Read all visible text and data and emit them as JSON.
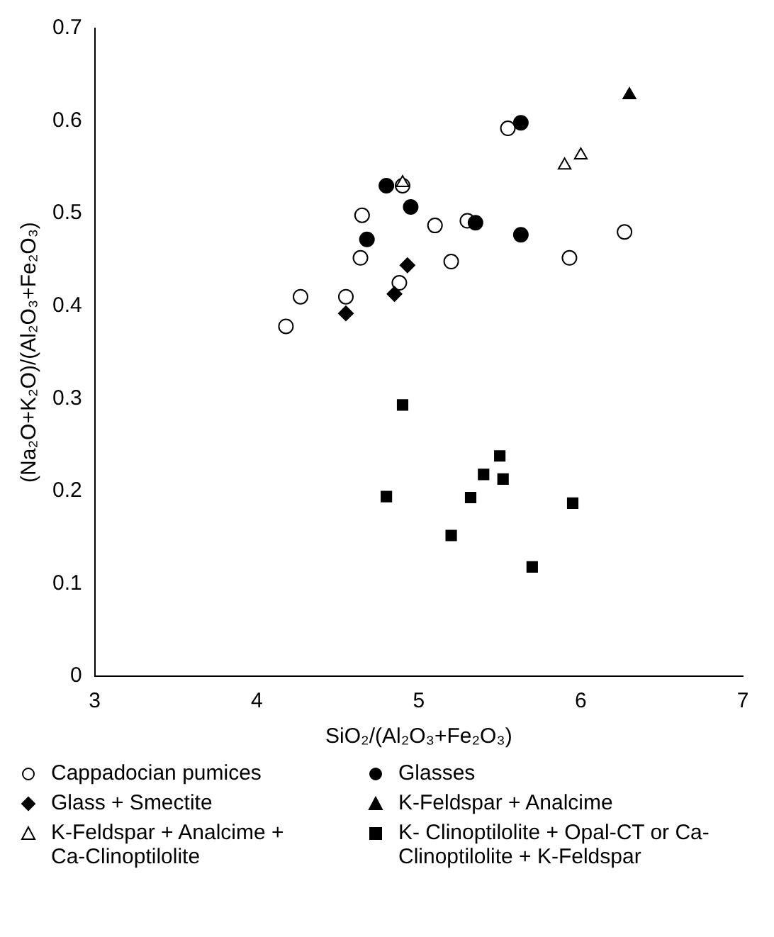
{
  "chart_data": {
    "type": "scatter",
    "xlabel": "SiO₂/(Al₂O₃+Fe₂O₃)",
    "ylabel": "(Na₂O+K₂O)/(Al₂O₃+Fe₂O₃)",
    "xlim": [
      3,
      7
    ],
    "xticks": [
      3,
      4,
      5,
      6,
      7
    ],
    "ylim": [
      0,
      0.7
    ],
    "yticks": [
      0,
      0.1,
      0.2,
      0.3,
      0.4,
      0.5,
      0.6,
      0.7
    ],
    "grid": false,
    "legend": "bottom",
    "series": [
      {
        "name": "Cappadocian pumices",
        "color": "#ffffff",
        "marker": "circle",
        "x": [
          4.18,
          4.27,
          4.55,
          4.64,
          4.65,
          4.88,
          4.9,
          5.1,
          5.2,
          5.3,
          5.55,
          5.93,
          6.27
        ],
        "values": [
          0.378,
          0.41,
          0.41,
          0.452,
          0.498,
          0.425,
          0.53,
          0.487,
          0.448,
          0.492,
          0.592,
          0.452,
          0.48
        ]
      },
      {
        "name": "Glasses",
        "color": "#000000",
        "marker": "circle",
        "x": [
          4.8,
          4.68,
          4.95,
          5.35,
          5.63,
          5.63
        ],
        "values": [
          0.53,
          0.472,
          0.507,
          0.49,
          0.598,
          0.477
        ]
      },
      {
        "name": "Glass + Smectite",
        "color": "#000000",
        "marker": "diamond",
        "x": [
          4.55,
          4.85,
          4.93
        ],
        "values": [
          0.392,
          0.413,
          0.444
        ]
      },
      {
        "name": "K-Feldspar + Analcime",
        "color": "#000000",
        "marker": "triangle",
        "x": [
          6.3
        ],
        "values": [
          0.628
        ]
      },
      {
        "name": "K-Feldspar + Analcime + Ca-Clinoptilolite",
        "color": "#ffffff",
        "marker": "triangle",
        "x": [
          4.9,
          5.9,
          6.0
        ],
        "values": [
          0.533,
          0.552,
          0.563
        ]
      },
      {
        "name": "K- Clinoptilolite + Opal-CT or Ca-Clinoptilolite + K-Feldspar",
        "color": "#000000",
        "marker": "square",
        "x": [
          4.9,
          4.8,
          5.2,
          5.32,
          5.4,
          5.5,
          5.52,
          5.7,
          5.95
        ],
        "values": [
          0.293,
          0.194,
          0.152,
          0.193,
          0.218,
          0.238,
          0.213,
          0.118,
          0.187
        ]
      }
    ]
  }
}
